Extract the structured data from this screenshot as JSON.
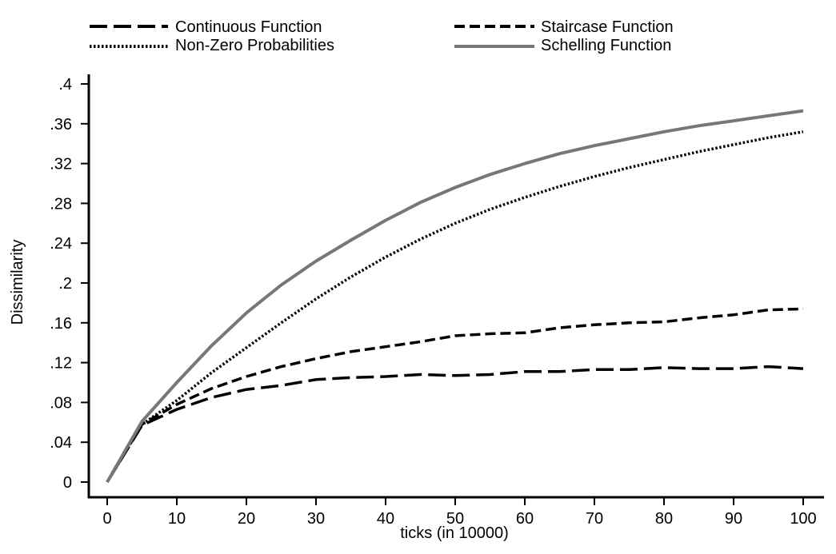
{
  "chart_data": {
    "type": "line",
    "xlabel": "ticks (in 10000)",
    "ylabel": "Dissimilarity",
    "xlim": [
      0,
      100
    ],
    "ylim": [
      0,
      0.4
    ],
    "xticks": [
      0,
      10,
      20,
      30,
      40,
      50,
      60,
      70,
      80,
      90,
      100
    ],
    "xtick_labels": [
      "0",
      "10",
      "20",
      "30",
      "40",
      "50",
      "60",
      "70",
      "80",
      "90",
      "100"
    ],
    "yticks": [
      0,
      0.04,
      0.08,
      0.12,
      0.16,
      0.2,
      0.24,
      0.28,
      0.32,
      0.36,
      0.4
    ],
    "ytick_labels": [
      "0",
      ".04",
      ".08",
      ".12",
      ".16",
      ".2",
      ".24",
      ".28",
      ".32",
      ".36",
      ".4"
    ],
    "grid": false,
    "legend_position": "top",
    "series": [
      {
        "name": "Continuous Function",
        "style": "long-dash",
        "color": "#000000",
        "x": [
          0,
          5,
          10,
          15,
          20,
          25,
          30,
          35,
          40,
          45,
          50,
          55,
          60,
          65,
          70,
          75,
          80,
          85,
          90,
          95,
          100
        ],
        "y": [
          0,
          0.057,
          0.073,
          0.085,
          0.093,
          0.097,
          0.103,
          0.105,
          0.106,
          0.108,
          0.107,
          0.108,
          0.111,
          0.111,
          0.113,
          0.113,
          0.115,
          0.114,
          0.114,
          0.116,
          0.114
        ]
      },
      {
        "name": "Staircase Function",
        "style": "dash",
        "color": "#000000",
        "x": [
          0,
          5,
          10,
          15,
          20,
          25,
          30,
          35,
          40,
          45,
          50,
          55,
          60,
          65,
          70,
          75,
          80,
          85,
          90,
          95,
          100
        ],
        "y": [
          0,
          0.058,
          0.078,
          0.094,
          0.106,
          0.116,
          0.124,
          0.131,
          0.136,
          0.141,
          0.147,
          0.149,
          0.15,
          0.155,
          0.158,
          0.16,
          0.161,
          0.165,
          0.168,
          0.173,
          0.174
        ]
      },
      {
        "name": "Non-Zero Probabilities",
        "style": "dot",
        "color": "#000000",
        "x": [
          0,
          5,
          10,
          15,
          20,
          25,
          30,
          35,
          40,
          45,
          50,
          55,
          60,
          65,
          70,
          75,
          80,
          85,
          90,
          95,
          100
        ],
        "y": [
          0,
          0.058,
          0.082,
          0.11,
          0.135,
          0.16,
          0.184,
          0.206,
          0.226,
          0.244,
          0.26,
          0.274,
          0.286,
          0.297,
          0.307,
          0.316,
          0.324,
          0.332,
          0.339,
          0.346,
          0.352
        ]
      },
      {
        "name": "Schelling Function",
        "style": "solid",
        "color": "#777777",
        "x": [
          0,
          5,
          10,
          15,
          20,
          25,
          30,
          35,
          40,
          45,
          50,
          55,
          60,
          65,
          70,
          75,
          80,
          85,
          90,
          95,
          100
        ],
        "y": [
          0,
          0.061,
          0.1,
          0.137,
          0.17,
          0.198,
          0.222,
          0.243,
          0.263,
          0.281,
          0.296,
          0.309,
          0.32,
          0.33,
          0.338,
          0.345,
          0.352,
          0.358,
          0.363,
          0.368,
          0.373
        ]
      }
    ]
  }
}
